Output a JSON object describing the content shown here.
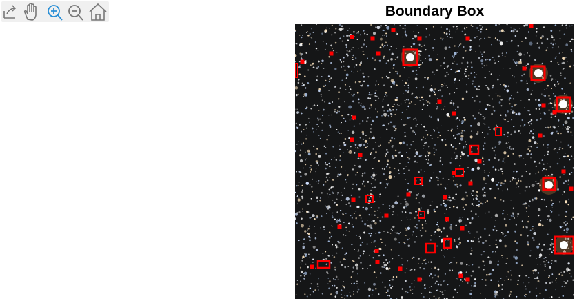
{
  "header": {
    "title": "Boundary Box"
  }
}
